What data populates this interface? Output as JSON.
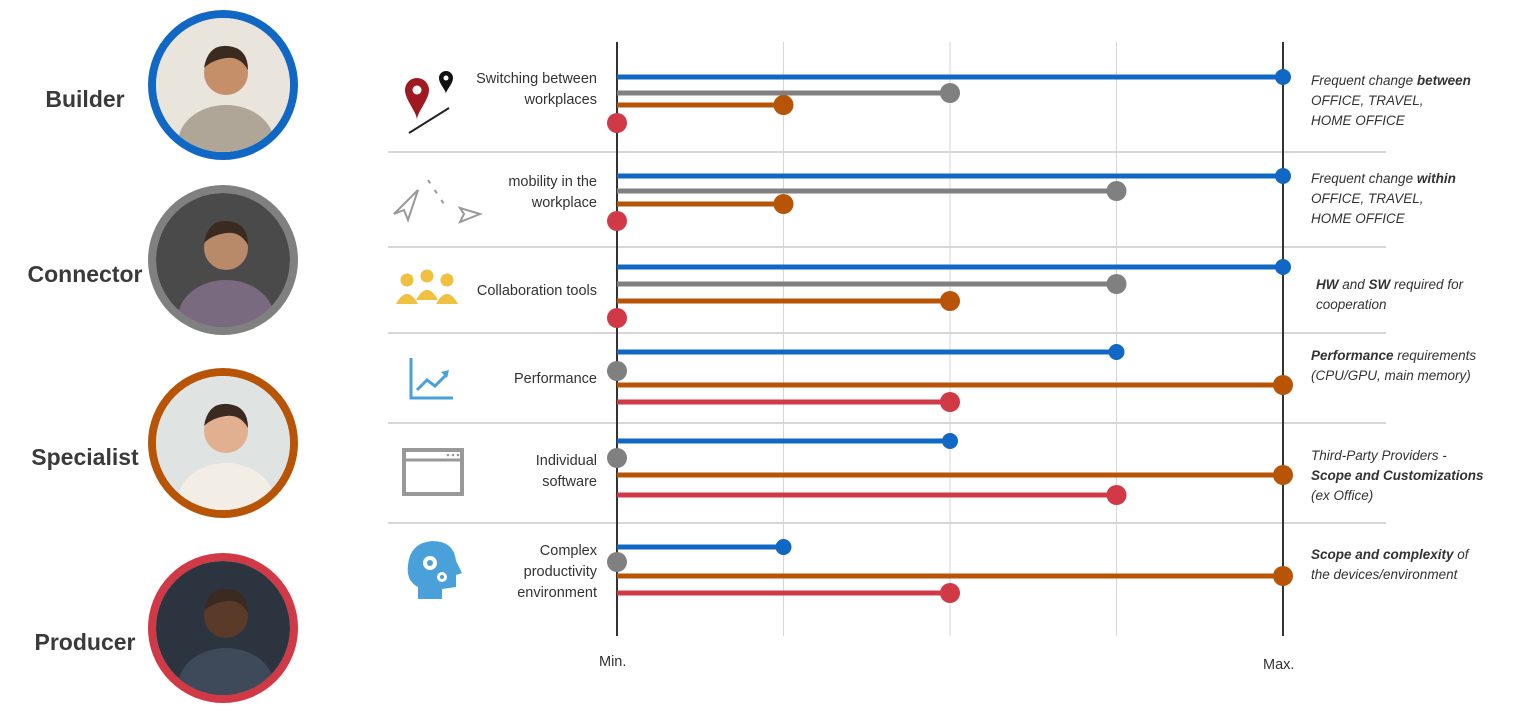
{
  "colors": {
    "builder": "#1068c4",
    "connector": "#808080",
    "specialist": "#b85406",
    "producer": "#d03945",
    "divider": "#d6d6d6",
    "icon_blue": "#4aa0d8",
    "icon_yellow": "#f0c040",
    "icon_gray": "#999999",
    "icon_red": "#a01820"
  },
  "personas": [
    {
      "key": "builder",
      "label": "Builder"
    },
    {
      "key": "connector",
      "label": "Connector"
    },
    {
      "key": "specialist",
      "label": "Specialist"
    },
    {
      "key": "producer",
      "label": "Producer"
    }
  ],
  "chart_data": {
    "type": "bar",
    "orientation": "horizontal",
    "xlim": [
      0,
      4
    ],
    "axis_labels": {
      "min": "Min.",
      "max": "Max."
    },
    "grid": true,
    "categories": [
      {
        "label": "Switching between workplaces",
        "lines": [
          "Switching between",
          "workplaces"
        ],
        "icon": "location-pin-icon"
      },
      {
        "label": "mobility in the workplace",
        "lines": [
          "mobility in the",
          "workplace"
        ],
        "icon": "paper-plane-icon"
      },
      {
        "label": "Collaboration tools",
        "lines": [
          "Collaboration tools"
        ],
        "icon": "people-group-icon"
      },
      {
        "label": "Performance",
        "lines": [
          "Performance"
        ],
        "icon": "line-chart-icon"
      },
      {
        "label": "Individual software",
        "lines": [
          "Individual",
          "software"
        ],
        "icon": "browser-window-icon"
      },
      {
        "label": "Complex productivity environment",
        "lines": [
          "Complex",
          "productivity",
          "environment"
        ],
        "icon": "head-gears-icon"
      }
    ],
    "series": [
      {
        "name": "Builder",
        "values": [
          4,
          4,
          4,
          3,
          2,
          1
        ]
      },
      {
        "name": "Connector",
        "values": [
          2,
          3,
          3,
          0,
          0,
          0
        ]
      },
      {
        "name": "Specialist",
        "values": [
          1,
          1,
          2,
          4,
          4,
          4
        ]
      },
      {
        "name": "Producer",
        "values": [
          0,
          0,
          0,
          2,
          3,
          2
        ]
      }
    ]
  },
  "notes": [
    [
      [
        {
          "t": "Frequent change ",
          "b": false
        },
        {
          "t": "between",
          "b": true
        }
      ],
      [
        {
          "t": "OFFICE, TRAVEL,",
          "b": false
        }
      ],
      [
        {
          "t": "HOME OFFICE",
          "b": false
        }
      ]
    ],
    [
      [
        {
          "t": "Frequent change ",
          "b": false
        },
        {
          "t": "within",
          "b": true
        }
      ],
      [
        {
          "t": "OFFICE, TRAVEL,",
          "b": false
        }
      ],
      [
        {
          "t": "HOME OFFICE",
          "b": false
        }
      ]
    ],
    [
      [
        {
          "t": "HW",
          "b": true
        },
        {
          "t": " and ",
          "b": false
        },
        {
          "t": "SW",
          "b": true
        },
        {
          "t": " required for",
          "b": false
        }
      ],
      [
        {
          "t": "cooperation",
          "b": false
        }
      ]
    ],
    [
      [
        {
          "t": "Performance",
          "b": true
        },
        {
          "t": " requirements",
          "b": false
        }
      ],
      [
        {
          "t": "(CPU/GPU, main memory)",
          "b": false
        }
      ]
    ],
    [
      [
        {
          "t": "Third-Party Providers -",
          "b": false
        }
      ],
      [
        {
          "t": "Scope and Customizations",
          "b": true
        }
      ],
      [
        {
          "t": "(ex Office)",
          "b": false
        }
      ]
    ],
    [
      [
        {
          "t": "Scope and complexity",
          "b": true
        },
        {
          "t": " of",
          "b": false
        }
      ],
      [
        {
          "t": "the devices/environment",
          "b": false
        }
      ]
    ]
  ]
}
